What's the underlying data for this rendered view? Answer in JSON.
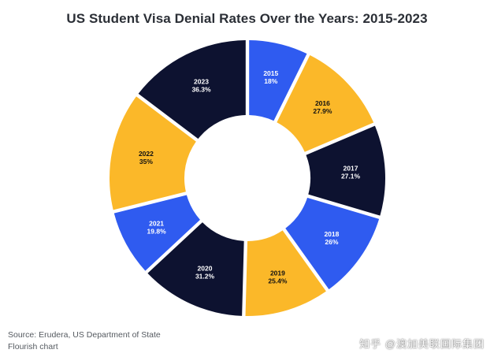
{
  "title": "US Student Visa Denial Rates Over the Years: 2015-2023",
  "footer": {
    "source": "Source: Erudera, US Department of State",
    "credit": "Flourish chart"
  },
  "watermark": "知乎 @澳加美联国际集团",
  "colors": {
    "blue": "#2f5bf0",
    "yellow": "#fbb829",
    "navy": "#0d1230",
    "label_light": "#ffffff",
    "label_dark": "#111111"
  },
  "chart_data": {
    "type": "pie",
    "variant": "donut",
    "title": "US Student Visa Denial Rates Over the Years: 2015-2023",
    "categories": [
      "2015",
      "2016",
      "2017",
      "2018",
      "2019",
      "2020",
      "2021",
      "2022",
      "2023"
    ],
    "values": [
      18,
      27.9,
      27.1,
      26,
      25.4,
      31.2,
      19.8,
      35,
      36.3
    ],
    "value_labels": [
      "18%",
      "27.9%",
      "27.1%",
      "26%",
      "25.4%",
      "31.2%",
      "19.8%",
      "35%",
      "36.3%"
    ],
    "slice_colors": [
      "#2f5bf0",
      "#fbb829",
      "#0d1230",
      "#2f5bf0",
      "#fbb829",
      "#0d1230",
      "#2f5bf0",
      "#fbb829",
      "#0d1230"
    ],
    "label_colors": [
      "#ffffff",
      "#111111",
      "#ffffff",
      "#ffffff",
      "#111111",
      "#ffffff",
      "#ffffff",
      "#111111",
      "#ffffff"
    ],
    "legend": "none"
  }
}
